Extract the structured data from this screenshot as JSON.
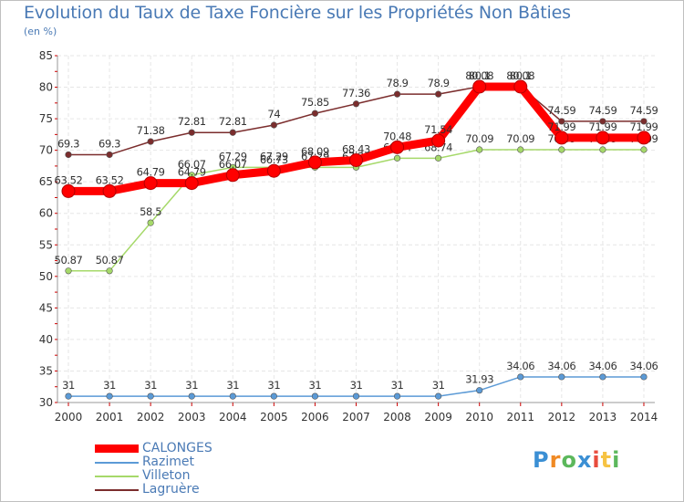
{
  "chart_data": {
    "type": "line",
    "title": "Evolution du Taux de Taxe Foncière sur les Propriétés Non Bâties",
    "ylabel": "(en %)",
    "xlabel": "",
    "ylim": [
      30,
      85
    ],
    "yticks": [
      "30",
      "35",
      "40",
      "45",
      "50",
      "55",
      "60",
      "65",
      "70",
      "75",
      "80",
      "85"
    ],
    "categories": [
      "2000",
      "2001",
      "2002",
      "2003",
      "2004",
      "2005",
      "2006",
      "2007",
      "2008",
      "2009",
      "2010",
      "2011",
      "2012",
      "2013",
      "2014"
    ],
    "series": [
      {
        "name": "Razimet",
        "color": "#5b9ad6",
        "values": [
          31,
          31,
          31,
          31,
          31,
          31,
          31,
          31,
          31,
          31,
          31.93,
          34.06,
          34.06,
          34.06,
          34.06
        ],
        "labels": [
          "31",
          "31",
          "31",
          "31",
          "31",
          "31",
          "31",
          "31",
          "31",
          "31",
          "31.93",
          "34.06",
          "34.06",
          "34.06",
          "34.06"
        ]
      },
      {
        "name": "Villeton",
        "color": "#a6d96a",
        "values": [
          50.87,
          50.87,
          58.5,
          66.07,
          67.29,
          67.29,
          67.29,
          67.29,
          68.74,
          68.74,
          70.09,
          70.09,
          70.09,
          70.09,
          70.09
        ],
        "labels": [
          "50.87",
          "50.87",
          "58.5",
          "66.07",
          "67.29",
          "67.29",
          "67.29",
          "67.29",
          "68.74",
          "68.74",
          "70.09",
          "70.09",
          "70.09",
          "70.09",
          "70.09"
        ]
      },
      {
        "name": "Lagruère",
        "color": "#7b2d2d",
        "values": [
          69.3,
          69.3,
          71.38,
          72.81,
          72.81,
          74,
          75.85,
          77.36,
          78.9,
          78.9,
          80.1,
          80.1,
          74.59,
          74.59,
          74.59
        ],
        "labels": [
          "69.3",
          "69.3",
          "71.38",
          "72.81",
          "72.81",
          "74",
          "75.85",
          "77.36",
          "78.9",
          "78.9",
          "80.1",
          "80.1",
          "74.59",
          "74.59",
          "74.59"
        ]
      },
      {
        "name": "CALONGES",
        "color": "#ff0000",
        "values": [
          63.52,
          63.52,
          64.79,
          64.79,
          66.07,
          66.73,
          68.09,
          68.43,
          70.48,
          71.54,
          80.08,
          80.08,
          71.99,
          71.99,
          71.99
        ],
        "labels": [
          "63.52",
          "63.52",
          "64.79",
          "64.79",
          "66.07",
          "66.73",
          "68.09",
          "68.43",
          "70.48",
          "71.54",
          "80.08",
          "80.08",
          "71.99",
          "71.99",
          "71.99"
        ]
      }
    ],
    "legend": {
      "placement": "bottom-left",
      "items": [
        {
          "name": "CALONGES",
          "color": "#ff0000",
          "thick": true
        },
        {
          "name": "Razimet",
          "color": "#5b9ad6",
          "thick": false
        },
        {
          "name": "Villeton",
          "color": "#a6d96a",
          "thick": false
        },
        {
          "name": "Lagruère",
          "color": "#7b2d2d",
          "thick": false
        }
      ]
    }
  },
  "logo": {
    "letters": [
      "P",
      "r",
      "o",
      "x",
      "i",
      "t",
      "i"
    ],
    "colors": [
      "#3b8fd4",
      "#f08a24",
      "#5cb85c",
      "#3b8fd4",
      "#e84c3d",
      "#f6c343",
      "#5cb85c"
    ]
  }
}
